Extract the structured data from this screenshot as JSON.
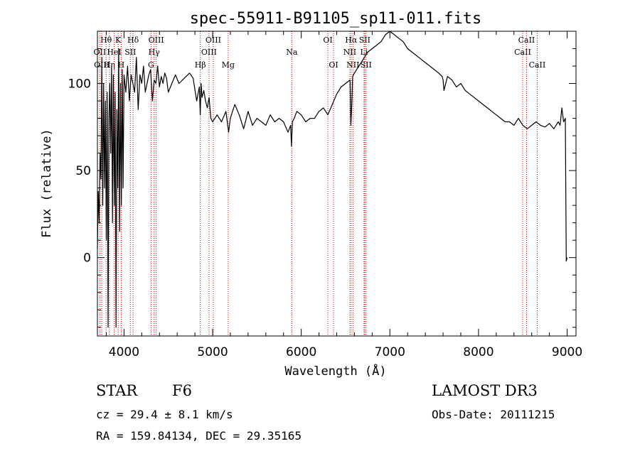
{
  "chart_data": {
    "type": "line",
    "title": "spec-55911-B91105_sp11-011.fits",
    "xlabel": "Wavelength (Å)",
    "ylabel": "Flux (relative)",
    "xlim": [
      3700,
      9100
    ],
    "ylim": [
      -45,
      130
    ],
    "xticks": [
      4000,
      5000,
      6000,
      7000,
      8000,
      9000
    ],
    "yticks": [
      0,
      50,
      100
    ],
    "grid": false,
    "series": [
      {
        "name": "spectrum",
        "x": [
          3700,
          3710,
          3720,
          3730,
          3740,
          3750,
          3760,
          3770,
          3780,
          3790,
          3800,
          3810,
          3820,
          3830,
          3840,
          3850,
          3860,
          3870,
          3880,
          3890,
          3900,
          3910,
          3920,
          3930,
          3940,
          3950,
          3960,
          3970,
          3980,
          3990,
          4000,
          4020,
          4040,
          4060,
          4080,
          4100,
          4120,
          4140,
          4160,
          4180,
          4200,
          4220,
          4240,
          4260,
          4280,
          4300,
          4320,
          4340,
          4360,
          4380,
          4400,
          4420,
          4440,
          4460,
          4480,
          4500,
          4540,
          4580,
          4620,
          4660,
          4700,
          4740,
          4780,
          4820,
          4850,
          4860,
          4870,
          4880,
          4900,
          4920,
          4940,
          4960,
          4980,
          5000,
          5050,
          5100,
          5150,
          5180,
          5200,
          5250,
          5300,
          5350,
          5400,
          5450,
          5500,
          5550,
          5600,
          5650,
          5700,
          5750,
          5800,
          5850,
          5880,
          5890,
          5900,
          5920,
          5950,
          6000,
          6050,
          6100,
          6150,
          6200,
          6250,
          6300,
          6350,
          6400,
          6450,
          6500,
          6550,
          6560,
          6570,
          6580,
          6600,
          6650,
          6700,
          6750,
          6800,
          6850,
          6900,
          6950,
          7000,
          7050,
          7100,
          7150,
          7200,
          7250,
          7300,
          7350,
          7400,
          7450,
          7500,
          7550,
          7590,
          7600,
          7610,
          7650,
          7700,
          7750,
          7800,
          7850,
          7900,
          7950,
          8000,
          8050,
          8100,
          8150,
          8200,
          8250,
          8300,
          8350,
          8400,
          8450,
          8500,
          8550,
          8600,
          8650,
          8700,
          8750,
          8800,
          8850,
          8900,
          8920,
          8940,
          8960,
          8980,
          8990,
          9000
        ],
        "values": [
          5,
          38,
          20,
          60,
          45,
          115,
          30,
          100,
          40,
          90,
          10,
          95,
          -40,
          80,
          100,
          60,
          110,
          20,
          105,
          30,
          95,
          -40,
          85,
          40,
          120,
          15,
          100,
          30,
          108,
          40,
          105,
          95,
          110,
          90,
          105,
          100,
          95,
          115,
          85,
          105,
          100,
          110,
          95,
          100,
          105,
          108,
          90,
          102,
          100,
          110,
          98,
          104,
          100,
          106,
          103,
          95,
          100,
          105,
          100,
          102,
          104,
          106,
          103,
          90,
          98,
          82,
          100,
          92,
          96,
          90,
          86,
          92,
          80,
          78,
          82,
          78,
          84,
          72,
          80,
          88,
          82,
          74,
          84,
          76,
          80,
          78,
          76,
          82,
          78,
          80,
          78,
          72,
          76,
          64,
          78,
          80,
          84,
          82,
          78,
          80,
          80,
          84,
          86,
          82,
          88,
          94,
          98,
          100,
          102,
          76,
          88,
          104,
          106,
          110,
          114,
          118,
          120,
          122,
          124,
          128,
          130,
          128,
          126,
          124,
          120,
          118,
          116,
          114,
          112,
          110,
          108,
          106,
          104,
          102,
          96,
          104,
          102,
          98,
          100,
          96,
          94,
          92,
          90,
          88,
          86,
          84,
          82,
          80,
          78,
          78,
          76,
          80,
          76,
          74,
          76,
          78,
          76,
          75,
          77,
          74,
          78,
          76,
          86,
          78,
          80,
          -2,
          0
        ]
      }
    ],
    "spectral_lines": [
      {
        "label": "Hθ",
        "x": 3798,
        "row": 1,
        "name": "hvline-htheta"
      },
      {
        "label": "OII",
        "x": 3727,
        "row": 2,
        "name": "hvline-oii-a"
      },
      {
        "label": "OIII",
        "x": 3749,
        "row": 3,
        "name": "hvline-oiii-a"
      },
      {
        "label": "Hη",
        "x": 3835,
        "row": 3,
        "name": "hvline-heta"
      },
      {
        "label": "HeI",
        "x": 3889,
        "row": 2,
        "name": "hvline-hei"
      },
      {
        "label": "K",
        "x": 3934,
        "row": 1,
        "name": "hvline-k"
      },
      {
        "label": "H",
        "x": 3968,
        "row": 3,
        "name": "hvline-h"
      },
      {
        "label": "SII",
        "x": 4072,
        "row": 2,
        "name": "hvline-sii-a"
      },
      {
        "label": "Hδ",
        "x": 4102,
        "row": 1,
        "name": "hvline-hdelta"
      },
      {
        "label": "G",
        "x": 4305,
        "row": 3,
        "name": "hvline-g"
      },
      {
        "label": "Hγ",
        "x": 4340,
        "row": 2,
        "name": "hvline-hgamma"
      },
      {
        "label": "OIII",
        "x": 4363,
        "row": 1,
        "name": "hvline-oiii-b"
      },
      {
        "label": "Hβ",
        "x": 4861,
        "row": 3,
        "name": "hvline-hbeta"
      },
      {
        "label": "OIII",
        "x": 4959,
        "row": 2,
        "name": "hvline-oiii-c"
      },
      {
        "label": "OIII",
        "x": 5007,
        "row": 1,
        "name": "hvline-oiii-d"
      },
      {
        "label": "Mg",
        "x": 5175,
        "row": 3,
        "name": "hvline-mg"
      },
      {
        "label": "Na",
        "x": 5893,
        "row": 2,
        "name": "hvline-na"
      },
      {
        "label": "OI",
        "x": 6300,
        "row": 1,
        "name": "hvline-oi-a"
      },
      {
        "label": "OI",
        "x": 6364,
        "row": 3,
        "name": "hvline-oi-b"
      },
      {
        "label": "NII",
        "x": 6548,
        "row": 2,
        "name": "hvline-nii-a"
      },
      {
        "label": "Hα",
        "x": 6563,
        "row": 1,
        "name": "hvline-halpha"
      },
      {
        "label": "NII",
        "x": 6583,
        "row": 3,
        "name": "hvline-nii-b"
      },
      {
        "label": "Li",
        "x": 6708,
        "row": 2,
        "name": "hvline-li"
      },
      {
        "label": "SII",
        "x": 6716,
        "row": 1,
        "name": "hvline-sii-b"
      },
      {
        "label": "SII",
        "x": 6731,
        "row": 3,
        "name": "hvline-sii-c"
      },
      {
        "label": "CaII",
        "x": 8498,
        "row": 2,
        "name": "hvline-caii-a"
      },
      {
        "label": "CaII",
        "x": 8542,
        "row": 1,
        "name": "hvline-caii-b"
      },
      {
        "label": "CaII",
        "x": 8662,
        "row": 3,
        "name": "hvline-caii-c"
      }
    ],
    "colors": {
      "spectrum": "#000000",
      "lines": "#cc0000"
    }
  },
  "info": {
    "object_class": "STAR",
    "subclass": "F6",
    "survey": "LAMOST DR3",
    "velocity": "cz = 29.4 ± 8.1 km/s",
    "obs_date": "Obs-Date: 20111215",
    "coords": "RA = 159.84134, DEC =  29.35165"
  }
}
